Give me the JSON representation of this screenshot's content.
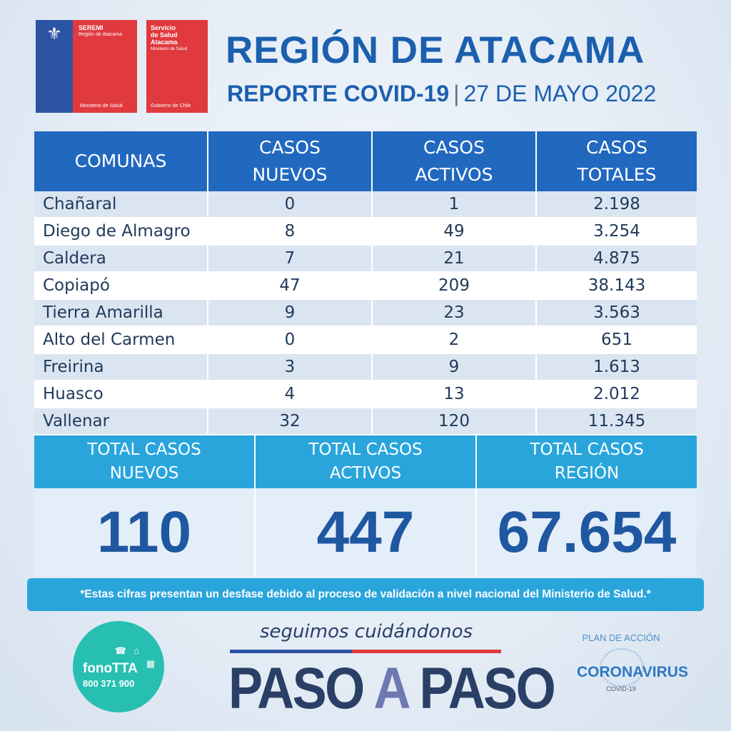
{
  "logos": {
    "seremi": {
      "title": "SEREMI",
      "subtitle": "Región de Atacama",
      "footer": "Ministerio de Salud"
    },
    "servicio": {
      "line1": "Servicio",
      "line2": "de Salud",
      "line3": "Atacama",
      "line4": "Ministerio de Salud",
      "footer": "Gobierno de Chile"
    }
  },
  "header": {
    "title": "REGIÓN DE ATACAMA",
    "report": "REPORTE COVID-19",
    "separator": "|",
    "date": "27 DE MAYO 2022"
  },
  "table": {
    "columns": [
      "COMUNAS",
      "CASOS\nNUEVOS",
      "CASOS\nACTIVOS",
      "CASOS\nTOTALES"
    ],
    "rows": [
      {
        "comuna": "Chañaral",
        "nuevos": "0",
        "activos": "1",
        "totales": "2.198"
      },
      {
        "comuna": "Diego de Almagro",
        "nuevos": "8",
        "activos": "49",
        "totales": "3.254"
      },
      {
        "comuna": "Caldera",
        "nuevos": "7",
        "activos": "21",
        "totales": "4.875"
      },
      {
        "comuna": "Copiapó",
        "nuevos": "47",
        "activos": "209",
        "totales": "38.143"
      },
      {
        "comuna": "Tierra Amarilla",
        "nuevos": "9",
        "activos": "23",
        "totales": "3.563"
      },
      {
        "comuna": "Alto del Carmen",
        "nuevos": "0",
        "activos": "2",
        "totales": "651"
      },
      {
        "comuna": "Freirina",
        "nuevos": "3",
        "activos": "9",
        "totales": "1.613"
      },
      {
        "comuna": "Huasco",
        "nuevos": "4",
        "activos": "13",
        "totales": "2.012"
      },
      {
        "comuna": "Vallenar",
        "nuevos": "32",
        "activos": "120",
        "totales": "11.345"
      }
    ]
  },
  "totals": [
    {
      "label": "TOTAL CASOS\nNUEVOS",
      "value": "110"
    },
    {
      "label": "TOTAL CASOS\nACTIVOS",
      "value": "447"
    },
    {
      "label": "TOTAL CASOS\nREGIÓN",
      "value": "67.654"
    }
  ],
  "note": "*Estas cifras presentan un desfase debido al proceso de validación a nivel nacional del Ministerio de Salud.*",
  "footer": {
    "fono_name": "fonoTTA",
    "fono_number": "800 371 900",
    "slogan": "seguimos cuidándonos",
    "paso_1": "PASO",
    "paso_a": "A",
    "paso_2": "PASO",
    "plan_top": "PLAN DE ACCIÓN",
    "plan_main": "CORONAVIRUS",
    "plan_sub": "COVID-19"
  },
  "colors": {
    "brand_blue": "#1b5fae",
    "header_blue": "#2168bf",
    "accent_cyan": "#29a5dc",
    "red": "#e03a3e"
  }
}
